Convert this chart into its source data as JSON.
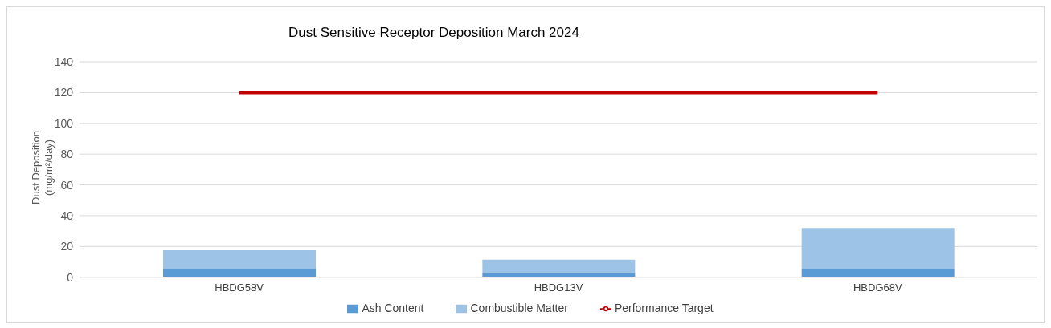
{
  "chart_data": {
    "type": "bar",
    "title": "Dust Sensitive Receptor Deposition March 2024",
    "ylabel": "Dust Deposition (mg/m²/day)",
    "categories": [
      "HBDG58V",
      "HBDG13V",
      "HBDG68V"
    ],
    "stacked": true,
    "series": [
      {
        "name": "Ash Content",
        "color": "#5b9bd5",
        "values": [
          5.5,
          2.5,
          5.5
        ]
      },
      {
        "name": "Combustible Matter",
        "color": "#9dc3e6",
        "values": [
          12,
          9,
          26.5
        ]
      },
      {
        "name": "Performance Target",
        "type": "line",
        "color": "#c00000",
        "values": [
          120,
          120,
          120
        ]
      }
    ],
    "ylim": [
      0,
      140
    ],
    "yticks": [
      0,
      20,
      40,
      60,
      80,
      100,
      120,
      140
    ],
    "grid": "y",
    "legend": "bottom",
    "marker": "none",
    "line_style": "solid"
  }
}
